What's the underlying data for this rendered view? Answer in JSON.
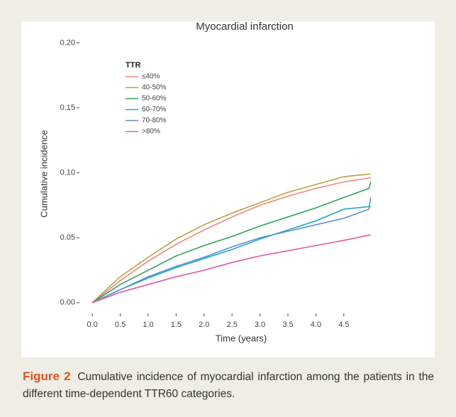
{
  "chart_data": {
    "type": "line",
    "title": "Myocardial infarction",
    "xlabel": "Time (years)",
    "ylabel": "Cumulative incidence",
    "legend_title": "TTR",
    "x": [
      0,
      0.5,
      1,
      1.5,
      2,
      2.5,
      3,
      3.5,
      4,
      4.5,
      4.95,
      4.98
    ],
    "series": [
      {
        "name": "≤40%",
        "color": "#f0877c",
        "values": [
          0,
          0.017,
          0.032,
          0.045,
          0.056,
          0.066,
          0.075,
          0.082,
          0.088,
          0.093,
          0.096,
          0.096
        ]
      },
      {
        "name": "40-50%",
        "color": "#b9a13f",
        "values": [
          0,
          0.02,
          0.035,
          0.049,
          0.06,
          0.069,
          0.077,
          0.085,
          0.091,
          0.097,
          0.099,
          0.099
        ]
      },
      {
        "name": "50-60%",
        "color": "#2ea35a",
        "values": [
          0,
          0.014,
          0.025,
          0.036,
          0.044,
          0.051,
          0.059,
          0.066,
          0.073,
          0.081,
          0.088,
          0.093
        ]
      },
      {
        "name": "60-70%",
        "color": "#1eaac8",
        "values": [
          0,
          0.01,
          0.019,
          0.027,
          0.034,
          0.041,
          0.049,
          0.056,
          0.063,
          0.072,
          0.074,
          0.074
        ]
      },
      {
        "name": "70-80%",
        "color": "#5b8fd1",
        "values": [
          0,
          0.01,
          0.02,
          0.028,
          0.035,
          0.043,
          0.05,
          0.055,
          0.06,
          0.065,
          0.072,
          0.081
        ]
      },
      {
        "name": ">80%",
        "color": "#e15aa0",
        "values": [
          0,
          0.008,
          0.014,
          0.02,
          0.025,
          0.031,
          0.036,
          0.04,
          0.044,
          0.048,
          0.052,
          0.052
        ]
      }
    ],
    "xlim": [
      -0.23,
      5.2
    ],
    "ylim": [
      -0.005,
      0.203
    ],
    "xticks": [
      {
        "value": 0,
        "label": "0.0"
      },
      0.5,
      {
        "value": 1,
        "label": "1.0"
      },
      1.5,
      {
        "value": 2,
        "label": "2.0"
      },
      2.5,
      {
        "value": 3,
        "label": "3.0"
      },
      3.5,
      {
        "value": 4,
        "label": "4.0"
      },
      4.5
    ],
    "yticks": [
      {
        "value": 0,
        "label": "0.00"
      },
      {
        "value": 0.05,
        "label": "0.05"
      },
      {
        "value": 0.1,
        "label": "0.10"
      },
      {
        "value": 0.15,
        "label": "0.15"
      },
      {
        "value": 0.2,
        "label": "0.20"
      }
    ],
    "legend_position": "upper left"
  },
  "caption": {
    "label": "Figure 2",
    "text": "Cumulative incidence of myocardial infarction among the patients in the different time-dependent TTR60 categories."
  }
}
